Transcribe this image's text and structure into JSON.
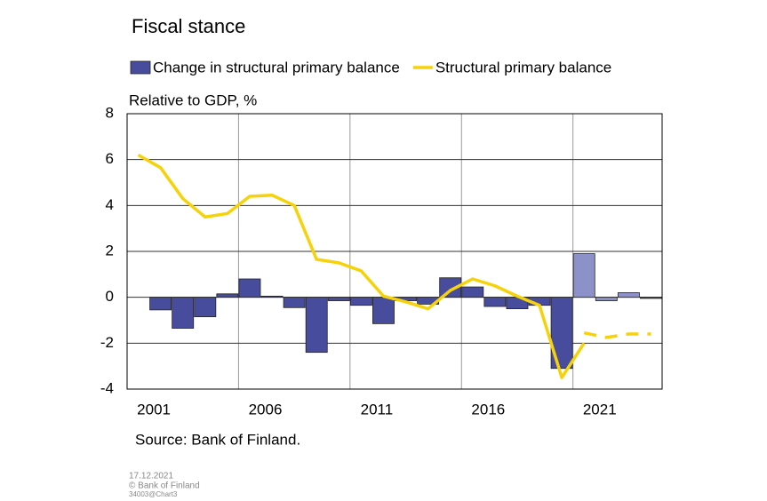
{
  "chart_data": {
    "type": "bar-line",
    "title": "Fiscal stance",
    "y_label": "Relative to GDP, %",
    "source": "Source: Bank of Finland.",
    "footer": [
      "17.12.2021",
      "© Bank of Finland",
      "34003@Chart3"
    ],
    "categories": [
      null,
      "2001",
      null,
      null,
      null,
      null,
      "2006",
      null,
      null,
      null,
      null,
      "2011",
      null,
      null,
      null,
      null,
      "2016",
      null,
      null,
      null,
      null,
      "2021",
      null,
      null
    ],
    "series": [
      {
        "name": "Change in structural primary balance",
        "kind": "bar",
        "color": "#484c9c",
        "forecast_color": "#8c92c9",
        "values": [
          null,
          -0.55,
          -1.35,
          -0.85,
          0.15,
          0.8,
          0.05,
          -0.45,
          -2.4,
          -0.15,
          -0.35,
          -1.15,
          -0.15,
          -0.3,
          0.85,
          0.45,
          -0.4,
          -0.5,
          -0.35,
          -3.1,
          1.9,
          -0.15,
          0.2,
          -0.05
        ],
        "forecast": [
          false,
          false,
          false,
          false,
          false,
          false,
          false,
          false,
          false,
          false,
          false,
          false,
          false,
          false,
          false,
          false,
          false,
          false,
          false,
          false,
          true,
          true,
          true,
          false
        ]
      },
      {
        "name": "Structural primary balance",
        "kind": "line",
        "color": "#f5d20a",
        "values": [
          6.2,
          5.65,
          4.3,
          3.5,
          3.65,
          4.4,
          4.45,
          4.0,
          1.65,
          1.5,
          1.15,
          0.05,
          -0.2,
          -0.5,
          0.3,
          0.8,
          0.5,
          0.05,
          -0.35,
          -3.5,
          -2.0,
          null,
          null,
          null
        ],
        "forecast": [
          null,
          null,
          null,
          null,
          null,
          null,
          null,
          null,
          null,
          null,
          null,
          null,
          null,
          null,
          null,
          null,
          null,
          null,
          null,
          null,
          -1.55,
          -1.75,
          -1.6,
          -1.6
        ]
      }
    ],
    "ylim": [
      -4,
      8
    ],
    "yticks": [
      -4,
      -2,
      0,
      2,
      4,
      6,
      8
    ],
    "grid": true,
    "legend": "top"
  }
}
